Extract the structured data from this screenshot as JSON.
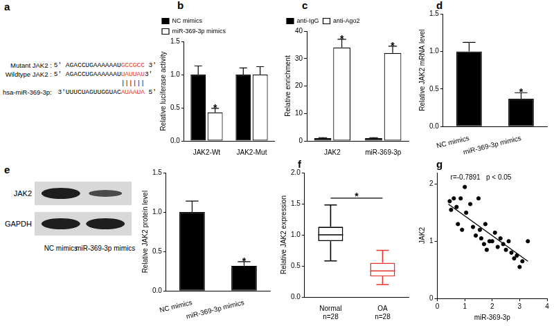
{
  "panel_a": {
    "panel": "a",
    "color": "#e8352b",
    "rows": [
      {
        "label": "Mutant JAK2 :",
        "prefix": "5' AGACCUGAAAAAAU",
        "site": "GCCGCC",
        "suffix": " 3'"
      },
      {
        "label": "Wildtype JAK2 :",
        "prefix": "5' AGACCUGAAAAAAU",
        "site": "UAUUAU",
        "suffix": "3'"
      },
      {
        "label": "hsa-miR-369-3p:",
        "prefix": "3'UUUCUAGUUGGUAC",
        "site": "AUAAUA",
        "suffix": " 5'"
      }
    ],
    "pairing": "||||||"
  },
  "panel_e_blot": {
    "panel": "e",
    "rows": [
      "JAK2",
      "GAPDH"
    ],
    "lanes": [
      "NC mimics",
      "miR-369-3p mimics"
    ]
  },
  "chart_data": [
    {
      "panel": "b",
      "type": "bar",
      "categories": [
        "JAK2-Wt",
        "JAK2-Mut"
      ],
      "series": [
        {
          "name": "NC mimics",
          "color": "#000000",
          "values": [
            1.0,
            1.0
          ],
          "errors": [
            0.13,
            0.1
          ]
        },
        {
          "name": "miR-369-3p mimics",
          "color": "#ffffff",
          "values": [
            0.43,
            1.0
          ],
          "errors": [
            0.06,
            0.12
          ]
        }
      ],
      "y_label": "Relative luciferase activity",
      "ylim": [
        0,
        1.5
      ],
      "yticks": [
        {
          "value": 0,
          "label": "0.0"
        },
        0.5,
        {
          "value": 1,
          "label": "1.0"
        },
        1.5
      ],
      "grid": false,
      "legend": "top-left",
      "annotations": [
        {
          "text": "*",
          "category": "JAK2-Wt",
          "series": "miR-369-3p mimics"
        }
      ]
    },
    {
      "panel": "c",
      "type": "bar",
      "categories": [
        "JAK2",
        "miR-369-3p"
      ],
      "series": [
        {
          "name": "anti-IgG",
          "color": "#000000",
          "values": [
            1.0,
            1.0
          ],
          "errors": [
            0.2,
            0.2
          ]
        },
        {
          "name": "anti-Ago2",
          "color": "#ffffff",
          "values": [
            34,
            32
          ],
          "errors": [
            3,
            2.5
          ]
        }
      ],
      "y_label": "Relative enrichment",
      "ylim": [
        0,
        40
      ],
      "yticks": [
        0,
        10,
        20,
        30,
        40
      ],
      "grid": false,
      "legend": "top-left",
      "annotations": [
        {
          "text": "*",
          "category": "JAK2",
          "series": "anti-Ago2"
        },
        {
          "text": "*",
          "category": "miR-369-3p",
          "series": "anti-Ago2"
        }
      ]
    },
    {
      "panel": "d",
      "type": "bar",
      "categories": [
        "NC mimics",
        "miR-369-3p mimics"
      ],
      "values": [
        1.0,
        0.37
      ],
      "errors": [
        0.12,
        0.08
      ],
      "color": "#000000",
      "y_label": "Relative JAK2 mRNA level",
      "ylim": [
        0,
        1.5
      ],
      "yticks": [
        {
          "value": 0,
          "label": "0.0"
        },
        0.5,
        {
          "value": 1,
          "label": "1.0"
        },
        1.5
      ],
      "grid": false,
      "annotations": [
        {
          "text": "*",
          "category": "miR-369-3p mimics"
        }
      ]
    },
    {
      "type": "bar",
      "categories": [
        "NC mimics",
        "miR-369-3p mimics"
      ],
      "values": [
        1.0,
        0.32
      ],
      "errors": [
        0.14,
        0.05
      ],
      "color": "#000000",
      "y_label": "Relative JAK2 protein level",
      "ylim": [
        0,
        1.5
      ],
      "yticks": [
        {
          "value": 0,
          "label": "0.0"
        },
        0.5,
        {
          "value": 1,
          "label": "1.0"
        },
        1.5
      ],
      "grid": false,
      "annotations": [
        {
          "text": "*",
          "category": "miR-369-3p mimics"
        }
      ]
    },
    {
      "panel": "f",
      "type": "box",
      "categories": [
        "Normal",
        "OA"
      ],
      "category_sublabels": [
        "n=28",
        "n=28"
      ],
      "colors": [
        "#000000",
        "#e8352b"
      ],
      "boxes": [
        {
          "min": 0.58,
          "q1": 0.9,
          "median": 1.0,
          "q3": 1.13,
          "max": 1.48
        },
        {
          "min": 0.2,
          "q1": 0.33,
          "median": 0.42,
          "q3": 0.55,
          "max": 0.75
        }
      ],
      "y_label": "Relative JAK2 expression",
      "ylim": [
        0,
        2
      ],
      "yticks": [
        {
          "value": 0,
          "label": "0.0"
        },
        0.5,
        {
          "value": 1,
          "label": "1.0"
        },
        1.5,
        {
          "value": 2,
          "label": "2.0"
        }
      ],
      "grid": false,
      "annotations": [
        {
          "text": "*",
          "categories": [
            "Normal",
            "OA"
          ]
        }
      ]
    },
    {
      "panel": "g",
      "type": "scatter",
      "color": "#000000",
      "x": [
        0.45,
        0.5,
        0.6,
        0.7,
        0.75,
        0.85,
        0.9,
        1.0,
        1.05,
        1.2,
        1.3,
        1.4,
        1.5,
        1.55,
        1.6,
        1.7,
        1.75,
        1.8,
        1.9,
        2.0,
        2.1,
        2.2,
        2.3,
        2.4,
        2.5,
        2.6,
        2.7,
        2.8,
        2.9,
        3.0,
        3.1,
        3.3
      ],
      "values": [
        1.7,
        1.55,
        1.75,
        1.6,
        1.3,
        1.75,
        1.2,
        1.95,
        1.5,
        1.65,
        1.25,
        1.1,
        1.75,
        1.2,
        1.05,
        0.95,
        1.3,
        0.85,
        1.0,
        1.0,
        1.15,
        0.9,
        1.05,
        0.95,
        0.85,
        1.0,
        0.8,
        0.7,
        0.75,
        0.55,
        0.65,
        1.0
      ],
      "trend_line": {
        "x": [
          0.4,
          3.3
        ],
        "values": [
          1.65,
          0.65
        ]
      },
      "x_label": "miR-369-3p",
      "y_label": "JAK2",
      "xlim": [
        0,
        4
      ],
      "xticks": [
        0,
        1,
        2,
        3,
        4
      ],
      "ylim": [
        0,
        2.2
      ],
      "yticks": [
        0,
        1,
        2
      ],
      "grid": false,
      "annotations": [
        {
          "text": "r=-0.7891   p < 0.05"
        }
      ]
    }
  ]
}
